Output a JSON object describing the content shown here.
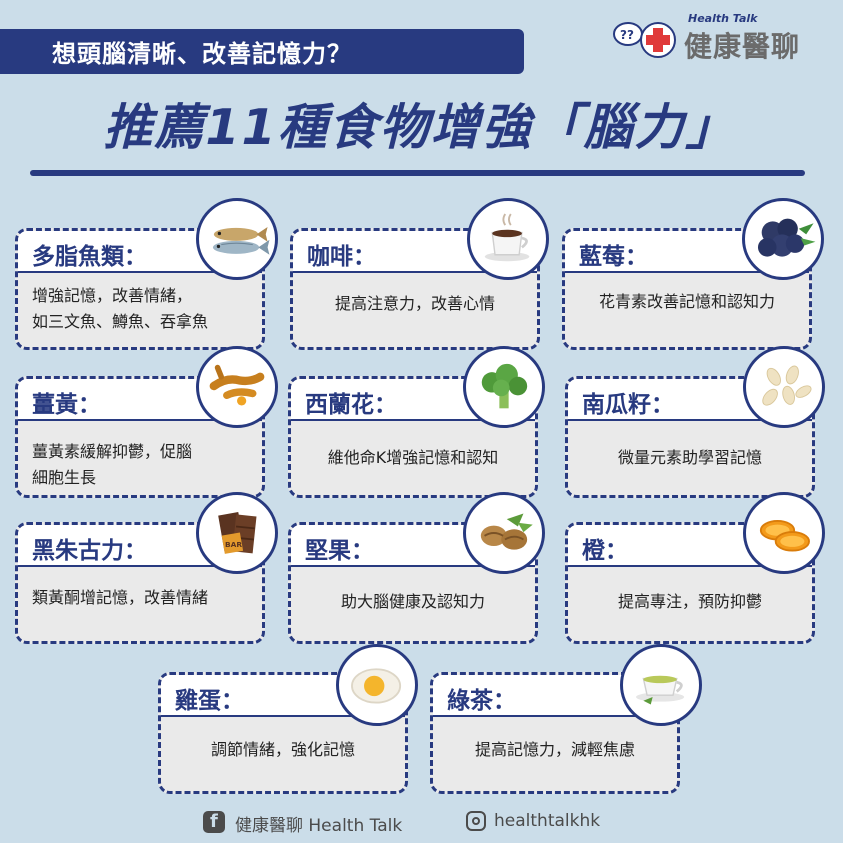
{
  "header": {
    "question": "想頭腦清晰、改善記憶力？",
    "title": "推薦11種食物增強「腦力」",
    "brand_en": "Health Talk",
    "brand_zh": "健康醫聊"
  },
  "colors": {
    "navy": "#283a80",
    "background": "#cbdde9",
    "card_body": "#eaeaea"
  },
  "foods": [
    {
      "name": "多脂魚類：",
      "desc": "增強記憶，改善情緒，\n如三文魚、鱒魚、吞拿魚",
      "icon": "fish-icon"
    },
    {
      "name": "咖啡：",
      "desc": "提高注意力，改善心情",
      "icon": "coffee-icon"
    },
    {
      "name": "藍莓：",
      "desc": "花青素改善記憶和認知力",
      "icon": "blueberry-icon"
    },
    {
      "name": "薑黃：",
      "desc": "薑黃素緩解抑鬱，促腦\n細胞生長",
      "icon": "turmeric-icon"
    },
    {
      "name": "西蘭花：",
      "desc": "維他命K增強記憶和認知",
      "icon": "broccoli-icon"
    },
    {
      "name": "南瓜籽：",
      "desc": "微量元素助學習記憶",
      "icon": "pumpkin-seed-icon"
    },
    {
      "name": "黑朱古力：",
      "desc": "類黃酮增記憶，改善情緒",
      "icon": "chocolate-icon"
    },
    {
      "name": "堅果：",
      "desc": "助大腦健康及認知力",
      "icon": "nuts-icon"
    },
    {
      "name": "橙：",
      "desc": "提高專注，預防抑鬱",
      "icon": "orange-icon"
    },
    {
      "name": "雞蛋：",
      "desc": "調節情緒，強化記憶",
      "icon": "egg-icon"
    },
    {
      "name": "綠茶：",
      "desc": "提高記憶力，減輕焦慮",
      "icon": "green-tea-icon"
    }
  ],
  "footer": {
    "facebook": "健康醫聊 Health Talk",
    "instagram": "healthtalkhk"
  }
}
